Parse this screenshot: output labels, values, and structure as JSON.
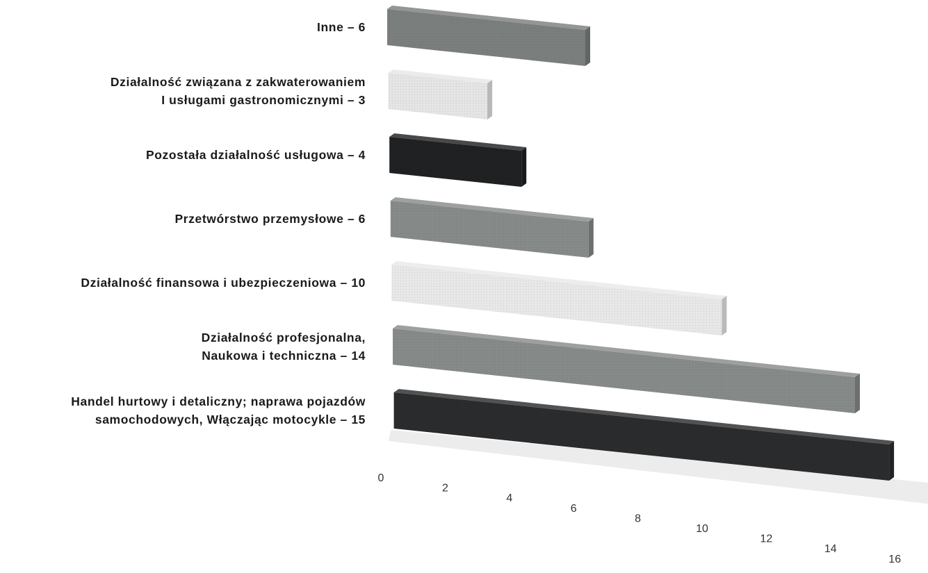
{
  "chart_data": {
    "type": "bar",
    "orientation": "horizontal",
    "style": "3d",
    "categories": [
      "Inne – 6",
      "Działalność związana z zakwaterowaniem\nI usługami gastronomicznymi – 3",
      "Pozostała działalność usługowa – 4",
      "Przetwórstwo przemysłowe – 6",
      "Działalność finansowa i ubezpieczeniowa – 10",
      "Działalność profesjonalna,\nNaukowa i techniczna – 14",
      "Handel hurtowy i detaliczny; naprawa pojazdów\nsamochodowych, Włączając motocykle – 15"
    ],
    "values": [
      6,
      3,
      4,
      6,
      10,
      14,
      15
    ],
    "bar_colors": [
      "#7b7f7e",
      "#e6e6e6",
      "#1f2122",
      "#878b8a",
      "#e9e9e9",
      "#878b8a",
      "#2a2c2d"
    ],
    "xticks": [
      "0",
      "2",
      "4",
      "6",
      "8",
      "10",
      "12",
      "14",
      "16"
    ],
    "xlim": [
      0,
      16
    ],
    "grid": false,
    "legend": "none"
  }
}
